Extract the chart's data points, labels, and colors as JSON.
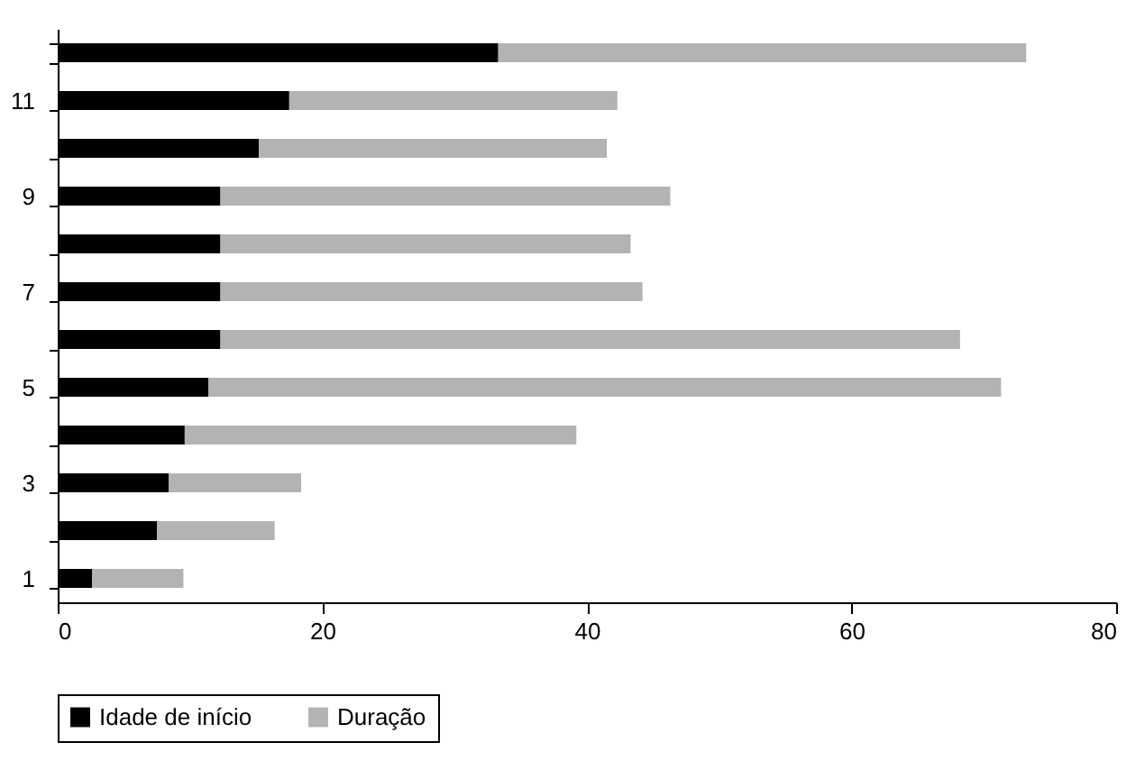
{
  "chart_data": {
    "type": "bar",
    "orientation": "horizontal",
    "stacked": true,
    "categories": [
      null,
      "11",
      null,
      "9",
      null,
      "7",
      null,
      "5",
      null,
      "3",
      null,
      "1"
    ],
    "series": [
      {
        "name": "Idade de início",
        "color": "#000000",
        "values": [
          33.3,
          17.5,
          15.2,
          12.3,
          12.3,
          12.3,
          12.3,
          11.4,
          9.6,
          8.4,
          7.5,
          2.6
        ]
      },
      {
        "name": "Duração",
        "color": "#b3b3b3",
        "values": [
          39.9,
          24.8,
          26.3,
          34,
          31,
          31.9,
          55.9,
          59.9,
          29.6,
          10,
          8.9,
          6.9
        ]
      }
    ],
    "xlim": [
      0,
      80
    ],
    "xticks": [
      0,
      20,
      40,
      60,
      80
    ],
    "grid": false,
    "legend": "bottom"
  }
}
